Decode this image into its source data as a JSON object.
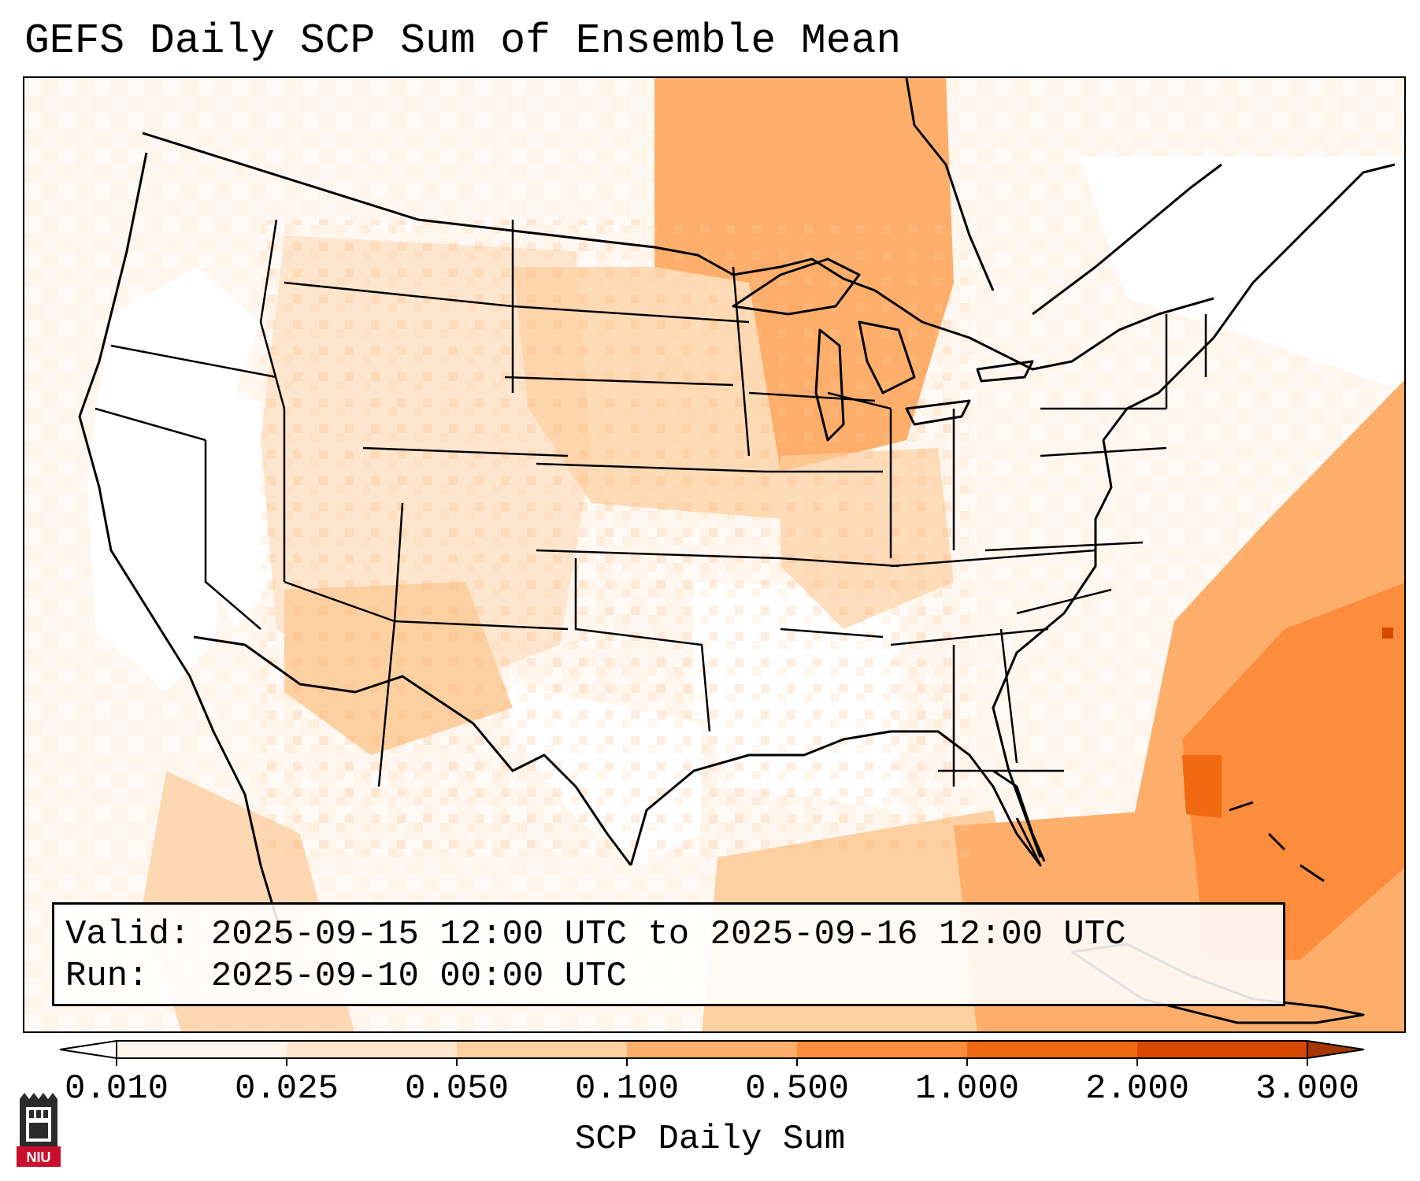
{
  "title": "GEFS Daily SCP Sum of Ensemble Mean",
  "info": {
    "valid_label": "Valid:",
    "valid_value": "2025-09-15 12:00 UTC to 2025-09-16 12:00 UTC",
    "run_label": "Run:",
    "run_value": "2025-09-10 00:00 UTC"
  },
  "colorbar": {
    "label": "SCP Daily Sum",
    "extend": "both",
    "ticks": [
      "0.010",
      "0.025",
      "0.050",
      "0.100",
      "0.500",
      "1.000",
      "2.000",
      "3.000"
    ],
    "colors": [
      "#fff5eb",
      "#fee6ce",
      "#fdd0a2",
      "#fdae6b",
      "#fd8d3c",
      "#f16913",
      "#d94801"
    ],
    "under_color": "#ffffff",
    "over_color": "#a63603"
  },
  "logo": {
    "text": "NIU",
    "icon": "university-tower-icon",
    "red": "#c8102e"
  },
  "map": {
    "projection": "Lambert Conformal, Contiguous US",
    "field": "SCP daily sum, ensemble mean",
    "max_region": "Western Atlantic off Southeast US coast"
  }
}
